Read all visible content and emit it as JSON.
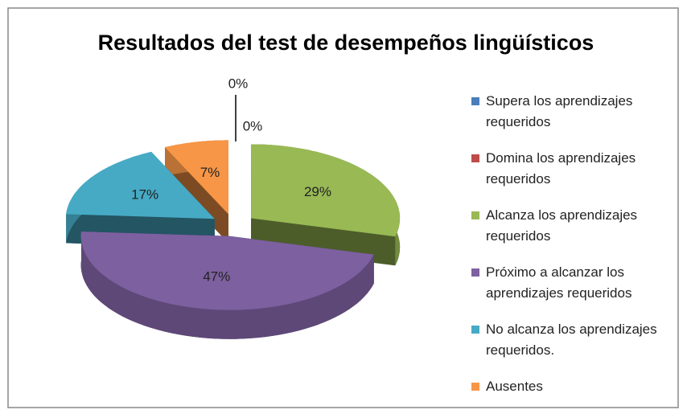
{
  "chart_data": {
    "type": "pie",
    "title": "Resultados del test de desempeños lingüísticos",
    "categories": [
      "Supera los aprendizajes requeridos",
      "Domina los aprendizajes requeridos",
      "Alcanza los aprendizajes requeridos",
      "Próximo a alcanzar los aprendizajes requeridos",
      "No alcanza los aprendizajes requeridos.",
      "Ausentes"
    ],
    "values": [
      0,
      0,
      29,
      47,
      17,
      7
    ],
    "value_labels": [
      "0%",
      "0%",
      "29%",
      "47%",
      "17%",
      "7%"
    ],
    "colors": [
      "#4a7ebb",
      "#be4b48",
      "#98b954",
      "#7d60a0",
      "#46aac5",
      "#f79646"
    ],
    "legend": "right"
  }
}
